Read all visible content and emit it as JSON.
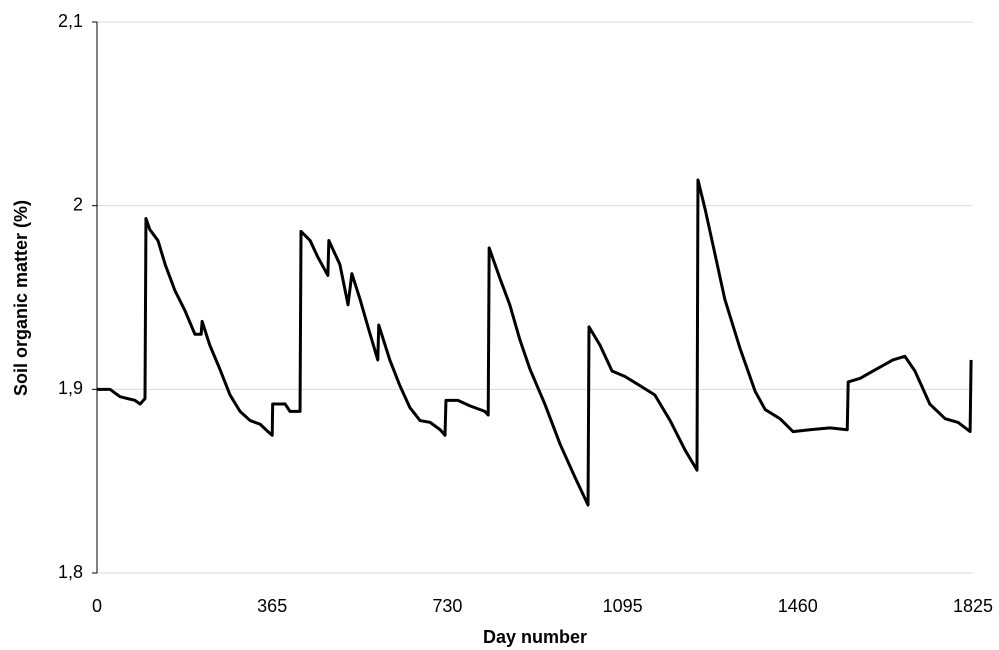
{
  "chart_data": {
    "type": "line",
    "x_label": "Day number",
    "y_label": "Soil organic matter (%)",
    "xlim": [
      0,
      1825
    ],
    "xticks": [
      0,
      365,
      730,
      1095,
      1460,
      1825
    ],
    "ylim": [
      1.8,
      2.1
    ],
    "yticks": [
      {
        "value": 1.8,
        "label": "1,8"
      },
      {
        "value": 1.9,
        "label": "1,9"
      },
      2,
      {
        "value": 2.1,
        "label": "2,1"
      }
    ],
    "grid": true,
    "x": [
      0,
      27,
      48,
      79,
      90,
      100,
      102,
      110,
      127,
      142,
      162,
      183,
      204,
      217,
      219,
      235,
      256,
      277,
      298,
      319,
      340,
      356,
      365,
      366,
      392,
      402,
      423,
      425,
      444,
      460,
      481,
      483,
      506,
      523,
      531,
      548,
      569,
      585,
      587,
      610,
      631,
      652,
      673,
      694,
      715,
      725,
      727,
      752,
      777,
      808,
      815,
      817,
      840,
      860,
      881,
      902,
      933,
      965,
      996,
      1023,
      1025,
      1048,
      1073,
      1100,
      1131,
      1162,
      1194,
      1225,
      1250,
      1252,
      1267,
      1288,
      1308,
      1340,
      1371,
      1392,
      1423,
      1450,
      1485,
      1527,
      1563,
      1565,
      1590,
      1617,
      1658,
      1683,
      1704,
      1735,
      1767,
      1794,
      1819,
      1821
    ],
    "series": [
      {
        "color": "#000000",
        "values": [
          1.9,
          1.9,
          1.896,
          1.894,
          1.892,
          1.895,
          1.993,
          1.987,
          1.981,
          1.968,
          1.954,
          1.943,
          1.93,
          1.93,
          1.937,
          1.924,
          1.911,
          1.897,
          1.888,
          1.883,
          1.881,
          1.877,
          1.875,
          1.892,
          1.892,
          1.888,
          1.888,
          1.986,
          1.981,
          1.972,
          1.962,
          1.981,
          1.968,
          1.946,
          1.963,
          1.949,
          1.93,
          1.916,
          1.935,
          1.916,
          1.902,
          1.89,
          1.883,
          1.882,
          1.878,
          1.875,
          1.894,
          1.894,
          1.891,
          1.888,
          1.886,
          1.977,
          1.96,
          1.946,
          1.927,
          1.911,
          1.892,
          1.87,
          1.852,
          1.837,
          1.934,
          1.924,
          1.91,
          1.907,
          1.902,
          1.897,
          1.883,
          1.867,
          1.856,
          2.014,
          1.998,
          1.973,
          1.949,
          1.922,
          1.899,
          1.889,
          1.884,
          1.877,
          1.878,
          1.879,
          1.878,
          1.904,
          1.906,
          1.91,
          1.916,
          1.918,
          1.91,
          1.892,
          1.884,
          1.882,
          1.877,
          1.916
        ]
      }
    ]
  }
}
